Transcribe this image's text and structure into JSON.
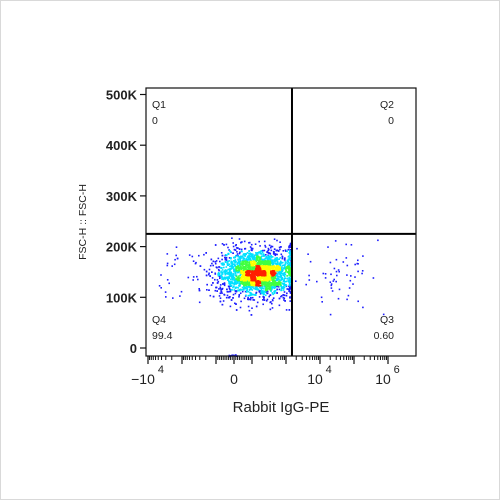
{
  "chart_data": {
    "type": "scatter",
    "subtype": "flow-cytometry-density-dot-plot",
    "xlabel": "Rabbit IgG-PE",
    "ylabel": "FSC-H :: FSC-H",
    "y_ticks": [
      {
        "value": 0,
        "label": "0"
      },
      {
        "value": 100000,
        "label": "100K"
      },
      {
        "value": 200000,
        "label": "200K"
      },
      {
        "value": 300000,
        "label": "300K"
      },
      {
        "value": 400000,
        "label": "400K"
      },
      {
        "value": 500000,
        "label": "500K"
      }
    ],
    "ylim": [
      0,
      520000
    ],
    "x_scale": "biexponential",
    "x_ticks": [
      {
        "value": -10000,
        "label": "−10",
        "exp": "4"
      },
      {
        "value": 0,
        "label": "0",
        "exp": ""
      },
      {
        "value": 10000,
        "label": "10",
        "exp": "4"
      },
      {
        "value": 1000000,
        "label": "10",
        "exp": "6"
      }
    ],
    "gates": {
      "x_threshold": 1500,
      "y_threshold": 225000
    },
    "quadrants": [
      {
        "name": "Q1",
        "value": "0",
        "position": "top-left"
      },
      {
        "name": "Q2",
        "value": "0",
        "position": "top-right"
      },
      {
        "name": "Q3",
        "value": "0.60",
        "position": "bottom-right"
      },
      {
        "name": "Q4",
        "value": "99.4",
        "position": "bottom-left"
      }
    ],
    "population": {
      "center_x": 150,
      "center_y": 150000,
      "approx_events": 3500
    },
    "grid": false,
    "colors": {
      "low": "#1f1fff",
      "mid": "#00e0ff",
      "midhigh": "#40ff40",
      "high": "#ffff00",
      "peak": "#ff2000"
    }
  }
}
